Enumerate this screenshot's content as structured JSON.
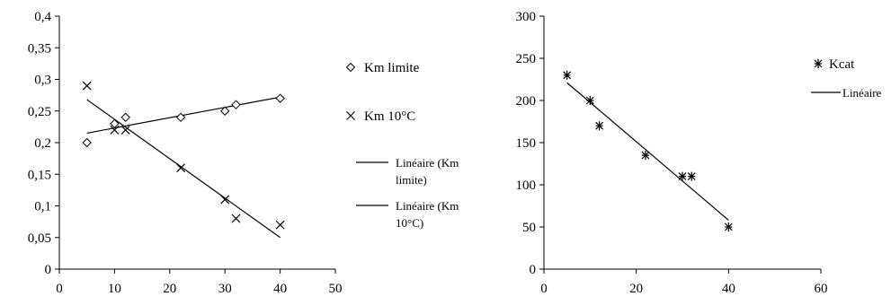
{
  "chart_data": [
    {
      "type": "scatter",
      "title": "",
      "xlabel": "",
      "ylabel": "",
      "xlim": [
        0,
        50
      ],
      "ylim": [
        0,
        0.4
      ],
      "x_ticks": [
        "0",
        "10",
        "20",
        "30",
        "40",
        "50"
      ],
      "y_ticks": [
        "0",
        "0,05",
        "0,1",
        "0,15",
        "0,2",
        "0,25",
        "0,3",
        "0,35",
        "0,4"
      ],
      "grid": false,
      "legend_position": "right",
      "series": [
        {
          "name": "Km limite",
          "marker": "diamond",
          "x": [
            5,
            10,
            12,
            22,
            30,
            32,
            40
          ],
          "y": [
            0.2,
            0.23,
            0.24,
            0.24,
            0.25,
            0.26,
            0.27
          ]
        },
        {
          "name": "Km 10°C",
          "marker": "x",
          "x": [
            5,
            10,
            12,
            22,
            30,
            32,
            40
          ],
          "y": [
            0.29,
            0.22,
            0.22,
            0.16,
            0.11,
            0.08,
            0.07
          ]
        }
      ],
      "trendlines": [
        {
          "name": "Linéaire (Km limite)",
          "legend_lines": [
            "Linéaire (Km",
            "limite)"
          ],
          "series": 0,
          "x": [
            5,
            40
          ],
          "y": [
            0.215,
            0.272
          ]
        },
        {
          "name": "Linéaire (Km 10°C)",
          "legend_lines": [
            "Linéaire (Km",
            "10°C)"
          ],
          "series": 1,
          "x": [
            5,
            40
          ],
          "y": [
            0.268,
            0.05
          ]
        }
      ]
    },
    {
      "type": "scatter",
      "title": "",
      "xlabel": "",
      "ylabel": "",
      "xlim": [
        0,
        60
      ],
      "ylim": [
        0,
        300
      ],
      "x_ticks": [
        "0",
        "20",
        "40",
        "60"
      ],
      "y_ticks": [
        "0",
        "50",
        "100",
        "150",
        "200",
        "250",
        "300"
      ],
      "grid": false,
      "legend_position": "right",
      "series": [
        {
          "name": "Kcat",
          "marker": "asterisk",
          "x": [
            5,
            10,
            12,
            22,
            30,
            32,
            40
          ],
          "y": [
            230,
            200,
            170,
            135,
            110,
            110,
            50
          ]
        }
      ],
      "trendlines": [
        {
          "name": "Linéaire",
          "legend_lines": [
            "Linéaire"
          ],
          "series": 0,
          "x": [
            5,
            40
          ],
          "y": [
            221,
            58
          ]
        }
      ]
    }
  ]
}
